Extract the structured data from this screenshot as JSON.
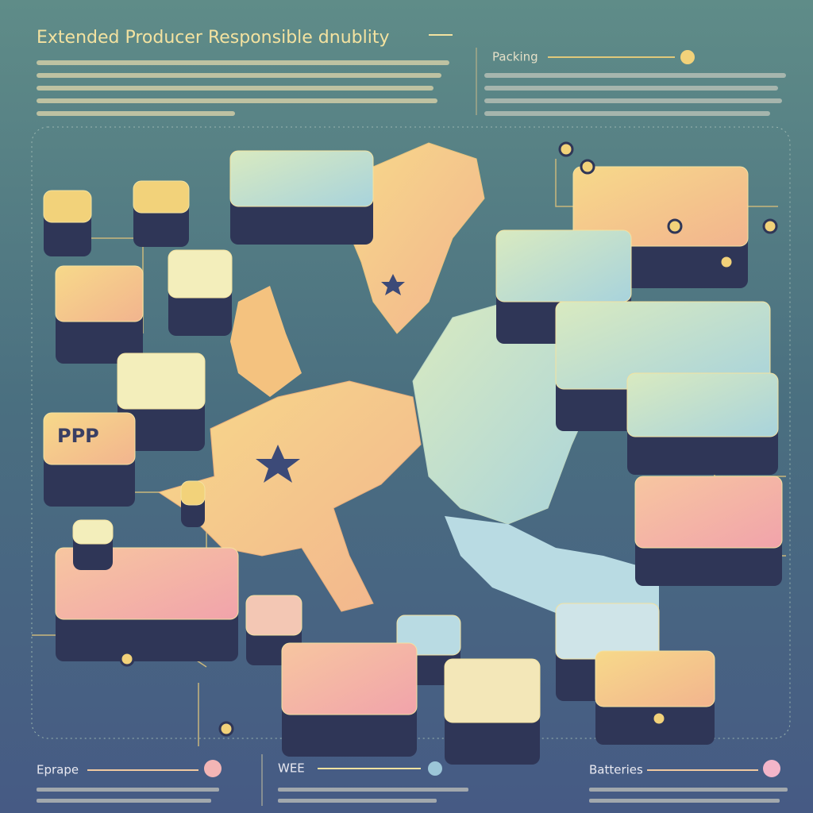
{
  "header": {
    "title": "Extended Producer Responsible dnublity"
  },
  "side_panel": {
    "label": "Packing"
  },
  "map_labels": [
    "PPP"
  ],
  "footer": [
    {
      "label": "Eprape"
    },
    {
      "label": "WEE"
    },
    {
      "label": "Batteries"
    }
  ]
}
